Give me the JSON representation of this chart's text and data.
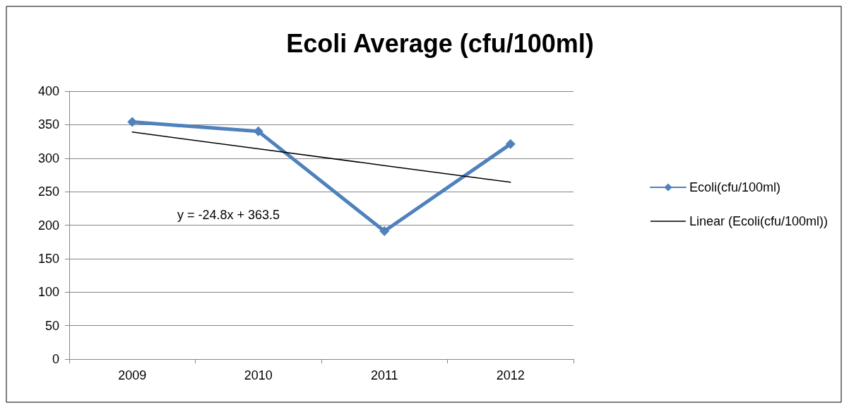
{
  "chart_data": {
    "type": "line",
    "title": "Ecoli Average (cfu/100ml)",
    "categories": [
      "2009",
      "2010",
      "2011",
      "2012"
    ],
    "series": [
      {
        "name": "Ecoli(cfu/100ml)",
        "color": "#4f81bd",
        "values": [
          354,
          340,
          191,
          321
        ],
        "marker": "diamond",
        "line_style": "solid"
      },
      {
        "name": "Linear (Ecoli(cfu/100ml))",
        "color": "#000000",
        "values": [
          339,
          314,
          289,
          264
        ],
        "marker": "none",
        "line_style": "solid"
      }
    ],
    "ylim": [
      0,
      400
    ],
    "yticks": [
      0,
      50,
      100,
      150,
      200,
      250,
      300,
      350,
      400
    ],
    "grid": "y",
    "legend": "right",
    "annotations": [
      "y = -24.8x + 363.5"
    ]
  }
}
